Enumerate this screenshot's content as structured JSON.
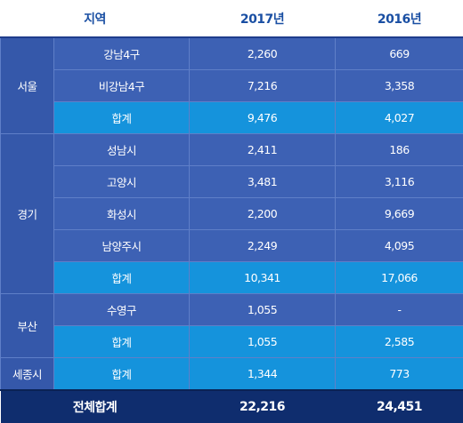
{
  "header": {
    "region": "지역",
    "y2017": "2017년",
    "y2016": "2016년"
  },
  "groups": [
    {
      "region": "서울",
      "rows": [
        {
          "name": "강남4구",
          "v2017": "2,260",
          "v2016": "669",
          "subtotal": false
        },
        {
          "name": "비강남4구",
          "v2017": "7,216",
          "v2016": "3,358",
          "subtotal": false
        },
        {
          "name": "합계",
          "v2017": "9,476",
          "v2016": "4,027",
          "subtotal": true
        }
      ]
    },
    {
      "region": "경기",
      "rows": [
        {
          "name": "성남시",
          "v2017": "2,411",
          "v2016": "186",
          "subtotal": false
        },
        {
          "name": "고양시",
          "v2017": "3,481",
          "v2016": "3,116",
          "subtotal": false
        },
        {
          "name": "화성시",
          "v2017": "2,200",
          "v2016": "9,669",
          "subtotal": false
        },
        {
          "name": "남양주시",
          "v2017": "2,249",
          "v2016": "4,095",
          "subtotal": false
        },
        {
          "name": "합계",
          "v2017": "10,341",
          "v2016": "17,066",
          "subtotal": true
        }
      ]
    },
    {
      "region": "부산",
      "rows": [
        {
          "name": "수영구",
          "v2017": "1,055",
          "v2016": "-",
          "subtotal": false
        },
        {
          "name": "합계",
          "v2017": "1,055",
          "v2016": "2,585",
          "subtotal": true
        }
      ]
    },
    {
      "region": "세종시",
      "rows": [
        {
          "name": "합계",
          "v2017": "1,344",
          "v2016": "773",
          "subtotal": true
        }
      ]
    }
  ],
  "total": {
    "label": "전체합계",
    "v2017": "22,216",
    "v2016": "24,451"
  }
}
